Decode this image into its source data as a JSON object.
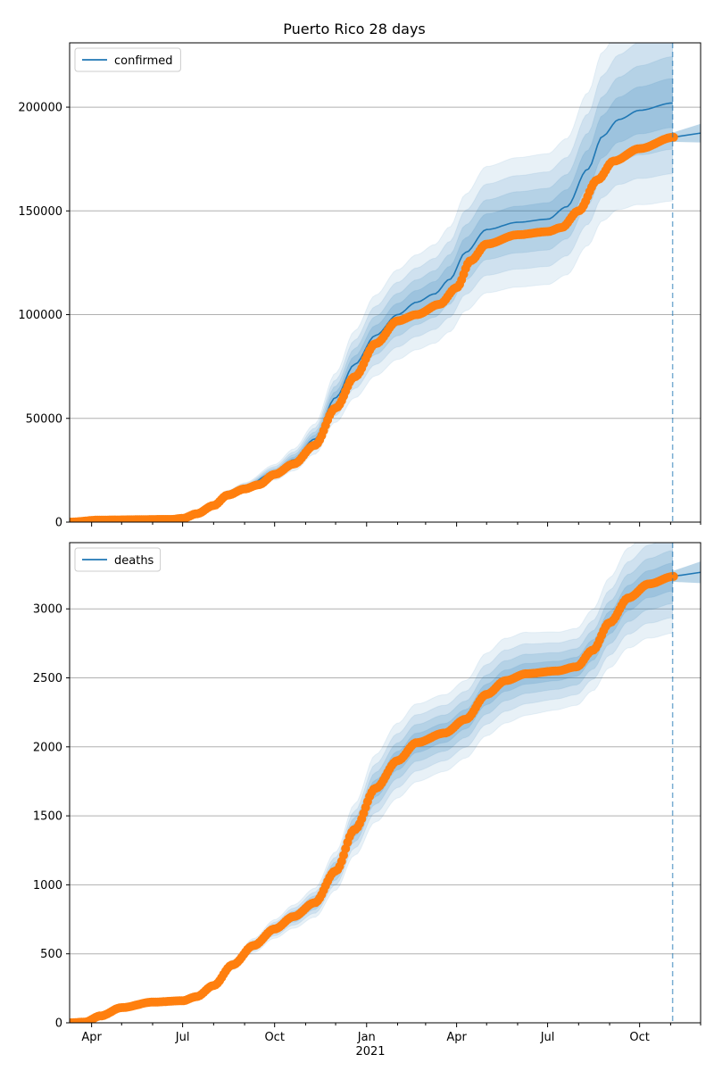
{
  "chart_data": {
    "title": "Puerto Rico 28 days",
    "type": "line",
    "x_range": [
      "2020-03-10",
      "2021-12-01"
    ],
    "forecast_date": "2021-11-03",
    "year_label": "2021",
    "x_tick_labels": [
      {
        "date": "2020-04-01",
        "label": "Apr"
      },
      {
        "date": "2020-07-01",
        "label": "Jul"
      },
      {
        "date": "2020-10-01",
        "label": "Oct"
      },
      {
        "date": "2021-01-01",
        "label": "Jan"
      },
      {
        "date": "2021-04-01",
        "label": "Apr"
      },
      {
        "date": "2021-07-01",
        "label": "Jul"
      },
      {
        "date": "2021-10-01",
        "label": "Oct"
      }
    ],
    "minor_tick_dates": [
      "2020-05-01",
      "2020-06-01",
      "2020-08-01",
      "2020-09-01",
      "2020-11-01",
      "2020-12-01",
      "2021-02-01",
      "2021-03-01",
      "2021-05-01",
      "2021-06-01",
      "2021-08-01",
      "2021-09-01",
      "2021-11-01",
      "2021-12-01"
    ],
    "colors": {
      "model": "#1f77b4",
      "observed": "#ff7f0e",
      "band": "#1f77b4",
      "grid": "#b0b0b0"
    },
    "panels": [
      {
        "legend": "confirmed",
        "legend_position": "top-left",
        "ylim": [
          0,
          231000
        ],
        "yticks": [
          0,
          50000,
          100000,
          150000,
          200000
        ],
        "ytick_labels": [
          "0",
          "50000",
          "100000",
          "150000",
          "200000"
        ],
        "grid": "horizontal",
        "model": [
          [
            "2020-03-10",
            0
          ],
          [
            "2020-06-10",
            1500
          ],
          [
            "2020-07-01",
            2000
          ],
          [
            "2020-07-15",
            4000
          ],
          [
            "2020-08-01",
            9000
          ],
          [
            "2020-08-15",
            14000
          ],
          [
            "2020-09-01",
            17000
          ],
          [
            "2020-10-01",
            24000
          ],
          [
            "2020-10-20",
            30000
          ],
          [
            "2020-11-10",
            40000
          ],
          [
            "2020-12-01",
            60000
          ],
          [
            "2020-12-20",
            76000
          ],
          [
            "2021-01-10",
            90000
          ],
          [
            "2021-02-01",
            100000
          ],
          [
            "2021-02-20",
            106000
          ],
          [
            "2021-03-10",
            110000
          ],
          [
            "2021-03-25",
            117000
          ],
          [
            "2021-04-10",
            130000
          ],
          [
            "2021-05-01",
            141000
          ],
          [
            "2021-06-01",
            144500
          ],
          [
            "2021-07-01",
            146000
          ],
          [
            "2021-07-20",
            152000
          ],
          [
            "2021-08-10",
            170000
          ],
          [
            "2021-08-25",
            186000
          ],
          [
            "2021-09-10",
            194000
          ],
          [
            "2021-10-01",
            198500
          ],
          [
            "2021-11-03",
            202000
          ]
        ],
        "band_spread": [
          [
            "2020-03-10",
            0
          ],
          [
            "2020-08-01",
            0.05
          ],
          [
            "2020-11-01",
            0.1
          ],
          [
            "2021-01-01",
            0.12
          ],
          [
            "2021-04-01",
            0.12
          ],
          [
            "2021-08-01",
            0.12
          ],
          [
            "2021-11-03",
            0.13
          ]
        ],
        "forecast_line": [
          [
            "2021-11-03",
            185500
          ],
          [
            "2021-12-01",
            187500
          ]
        ],
        "observed": [
          [
            "2020-03-10",
            0
          ],
          [
            "2020-04-10",
            1000
          ],
          [
            "2020-06-20",
            1300
          ],
          [
            "2020-07-01",
            1800
          ],
          [
            "2020-07-15",
            4000
          ],
          [
            "2020-08-01",
            8000
          ],
          [
            "2020-08-15",
            13000
          ],
          [
            "2020-09-01",
            16000
          ],
          [
            "2020-09-15",
            18000
          ],
          [
            "2020-10-01",
            23000
          ],
          [
            "2020-10-20",
            28000
          ],
          [
            "2020-11-10",
            37000
          ],
          [
            "2020-12-01",
            55000
          ],
          [
            "2020-12-20",
            70000
          ],
          [
            "2021-01-10",
            86000
          ],
          [
            "2021-02-01",
            97000
          ],
          [
            "2021-02-20",
            100000
          ],
          [
            "2021-03-15",
            105000
          ],
          [
            "2021-04-01",
            113000
          ],
          [
            "2021-04-15",
            126000
          ],
          [
            "2021-05-01",
            134000
          ],
          [
            "2021-06-01",
            138500
          ],
          [
            "2021-07-01",
            140000
          ],
          [
            "2021-07-15",
            142000
          ],
          [
            "2021-08-01",
            150000
          ],
          [
            "2021-08-20",
            165000
          ],
          [
            "2021-09-05",
            174000
          ],
          [
            "2021-10-01",
            180000
          ],
          [
            "2021-11-04",
            185500
          ]
        ]
      },
      {
        "legend": "deaths",
        "legend_position": "top-left",
        "ylim": [
          0,
          3480
        ],
        "yticks": [
          0,
          500,
          1000,
          1500,
          2000,
          2500,
          3000
        ],
        "ytick_labels": [
          "0",
          "500",
          "1000",
          "1500",
          "2000",
          "2500",
          "3000"
        ],
        "grid": "horizontal",
        "model": [
          [
            "2020-03-10",
            0
          ],
          [
            "2020-03-25",
            5
          ],
          [
            "2020-04-10",
            50
          ],
          [
            "2020-05-01",
            110
          ],
          [
            "2020-06-01",
            150
          ],
          [
            "2020-07-01",
            160
          ],
          [
            "2020-07-15",
            190
          ],
          [
            "2020-08-01",
            270
          ],
          [
            "2020-08-20",
            420
          ],
          [
            "2020-09-10",
            560
          ],
          [
            "2020-10-01",
            680
          ],
          [
            "2020-10-20",
            770
          ],
          [
            "2020-11-10",
            870
          ],
          [
            "2020-12-01",
            1100
          ],
          [
            "2020-12-20",
            1400
          ],
          [
            "2021-01-10",
            1700
          ],
          [
            "2021-02-01",
            1900
          ],
          [
            "2021-02-20",
            2030
          ],
          [
            "2021-03-20",
            2100
          ],
          [
            "2021-04-10",
            2200
          ],
          [
            "2021-05-01",
            2380
          ],
          [
            "2021-05-20",
            2480
          ],
          [
            "2021-06-10",
            2530
          ],
          [
            "2021-07-10",
            2550
          ],
          [
            "2021-07-30",
            2580
          ],
          [
            "2021-08-15",
            2700
          ],
          [
            "2021-09-01",
            2900
          ],
          [
            "2021-09-20",
            3080
          ],
          [
            "2021-10-10",
            3180
          ],
          [
            "2021-11-03",
            3230
          ]
        ],
        "band_spread": [
          [
            "2020-03-10",
            0
          ],
          [
            "2020-07-01",
            0.02
          ],
          [
            "2020-09-01",
            0.05
          ],
          [
            "2020-12-01",
            0.07
          ],
          [
            "2021-01-15",
            0.08
          ],
          [
            "2021-05-01",
            0.07
          ],
          [
            "2021-08-01",
            0.06
          ],
          [
            "2021-11-03",
            0.07
          ]
        ],
        "forecast_line": [
          [
            "2021-11-03",
            3235
          ],
          [
            "2021-12-01",
            3265
          ]
        ],
        "observed": [
          [
            "2020-03-10",
            0
          ],
          [
            "2020-03-25",
            5
          ],
          [
            "2020-04-10",
            50
          ],
          [
            "2020-05-01",
            110
          ],
          [
            "2020-06-01",
            150
          ],
          [
            "2020-07-01",
            160
          ],
          [
            "2020-07-15",
            190
          ],
          [
            "2020-08-01",
            270
          ],
          [
            "2020-08-20",
            420
          ],
          [
            "2020-09-10",
            560
          ],
          [
            "2020-10-01",
            680
          ],
          [
            "2020-10-20",
            770
          ],
          [
            "2020-11-10",
            870
          ],
          [
            "2020-12-01",
            1100
          ],
          [
            "2020-12-20",
            1400
          ],
          [
            "2021-01-10",
            1700
          ],
          [
            "2021-02-01",
            1900
          ],
          [
            "2021-02-20",
            2030
          ],
          [
            "2021-03-20",
            2100
          ],
          [
            "2021-04-10",
            2200
          ],
          [
            "2021-05-01",
            2380
          ],
          [
            "2021-05-20",
            2480
          ],
          [
            "2021-06-10",
            2530
          ],
          [
            "2021-07-10",
            2550
          ],
          [
            "2021-07-30",
            2580
          ],
          [
            "2021-08-15",
            2700
          ],
          [
            "2021-09-01",
            2900
          ],
          [
            "2021-09-20",
            3080
          ],
          [
            "2021-10-10",
            3180
          ],
          [
            "2021-11-04",
            3235
          ]
        ]
      }
    ]
  }
}
